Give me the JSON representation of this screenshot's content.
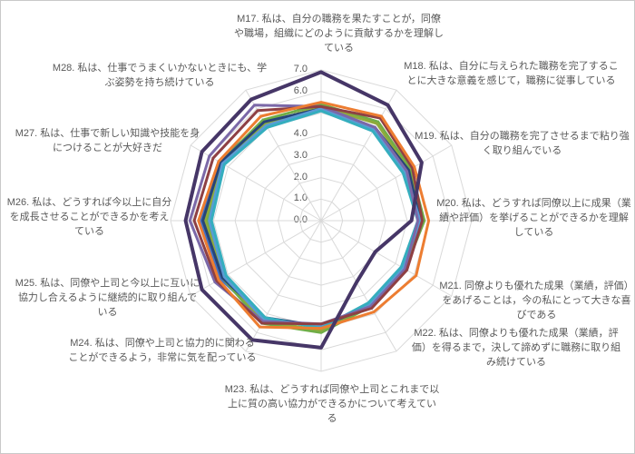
{
  "chart_data": {
    "type": "line",
    "subtype": "radar",
    "title": "",
    "ticks": [
      "0.0",
      "1.0",
      "2.0",
      "3.0",
      "4.0",
      "5.0",
      "6.0",
      "7.0"
    ],
    "rmin": 0,
    "rmax": 7,
    "grid": true,
    "grid_color": "#d9d9d9",
    "label_color": "#595959",
    "legend": "none",
    "axes": [
      {
        "id": "M17",
        "label": "M17. 私は、自分の職務を果たすことが，同僚や職場，組織にどのように貢献するかを理解している"
      },
      {
        "id": "M18",
        "label": "M18. 私は、自分に与えられた職務を完了することに大きな意義を感じて，職務に従事している"
      },
      {
        "id": "M19",
        "label": "M19. 私は、自分の職務を完了させるまで粘り強く取り組んでいる"
      },
      {
        "id": "M20",
        "label": "M20. 私は、どうすれば同僚以上に成果（業績や評価）を挙げることができるかを理解している"
      },
      {
        "id": "M21",
        "label": "M21. 同僚よりも優れた成果（業績，評価）をあげることは，今の私にとって大きな喜びである"
      },
      {
        "id": "M22",
        "label": "M22. 私は、同僚よりも優れた成果（業績，評価）を得るまで，決して諦めずに職務に取り組み続けている"
      },
      {
        "id": "M23",
        "label": "M23. 私は、どうすれば同僚や上司とこれまで以上に質の高い協力ができるかについて考えている"
      },
      {
        "id": "M24",
        "label": "M24. 私は、同僚や上司と協力的に関わることができるよう，非常に気を配っている"
      },
      {
        "id": "M25",
        "label": "M25. 私は、同僚や上司と今以上に互いに協力し合えるように継続的に取り組んでいる"
      },
      {
        "id": "M26",
        "label": "M26. 私は、どうすれば今以上に自分を成長させることができるかを考えている"
      },
      {
        "id": "M27",
        "label": "M27. 私は、仕事で新しい知識や技能を身につけることが大好きだ"
      },
      {
        "id": "M28",
        "label": "M28. 私は、仕事でうまくいかないときにも、学ぶ姿勢を持ち続けている"
      }
    ],
    "series": [
      {
        "color": "#4472C4",
        "width": 3,
        "values": [
          5.2,
          5.0,
          4.6,
          4.6,
          4.4,
          4.5,
          4.9,
          5.3,
          5.4,
          5.6,
          5.5,
          5.3
        ]
      },
      {
        "color": "#70AD47",
        "width": 3,
        "values": [
          5.4,
          5.3,
          4.8,
          4.8,
          4.5,
          4.6,
          5.2,
          5.5,
          5.3,
          5.3,
          5.4,
          5.4
        ]
      },
      {
        "color": "#8FAA3C",
        "width": 3,
        "values": [
          5.3,
          5.2,
          4.7,
          4.7,
          4.4,
          4.5,
          5.1,
          5.4,
          5.2,
          5.4,
          5.3,
          5.2
        ]
      },
      {
        "color": "#264478",
        "width": 3,
        "values": [
          5.2,
          5.0,
          4.7,
          4.6,
          4.4,
          4.6,
          4.9,
          5.2,
          5.3,
          5.5,
          5.4,
          5.3
        ]
      },
      {
        "color": "#5B9BD5",
        "width": 3,
        "values": [
          5.2,
          4.9,
          4.5,
          4.6,
          4.4,
          4.5,
          4.9,
          5.3,
          5.2,
          5.2,
          5.3,
          5.1
        ]
      },
      {
        "color": "#35AEBE",
        "width": 3,
        "values": [
          5.1,
          4.8,
          4.4,
          4.5,
          4.3,
          4.4,
          5.0,
          5.2,
          5.1,
          5.1,
          5.2,
          5.0
        ]
      },
      {
        "color": "#7B68A8",
        "width": 3,
        "values": [
          5.3,
          5.0,
          4.6,
          4.5,
          4.5,
          4.6,
          4.8,
          5.4,
          5.7,
          6.1,
          6.0,
          6.2
        ]
      },
      {
        "color": "#8E4044",
        "width": 3,
        "values": [
          5.3,
          5.5,
          4.9,
          4.7,
          4.6,
          4.7,
          4.8,
          5.5,
          5.6,
          5.9,
          5.8,
          5.9
        ]
      },
      {
        "color": "#ED7D31",
        "width": 3,
        "values": [
          5.5,
          5.6,
          5.0,
          5.0,
          5.1,
          4.9,
          5.0,
          5.7,
          5.5,
          5.7,
          5.5,
          5.6
        ]
      },
      {
        "color": "#463667",
        "width": 4,
        "values": [
          6.9,
          6.2,
          5.4,
          4.2,
          2.9,
          3.3,
          5.9,
          6.4,
          6.4,
          6.3,
          6.4,
          6.5
        ]
      }
    ]
  }
}
